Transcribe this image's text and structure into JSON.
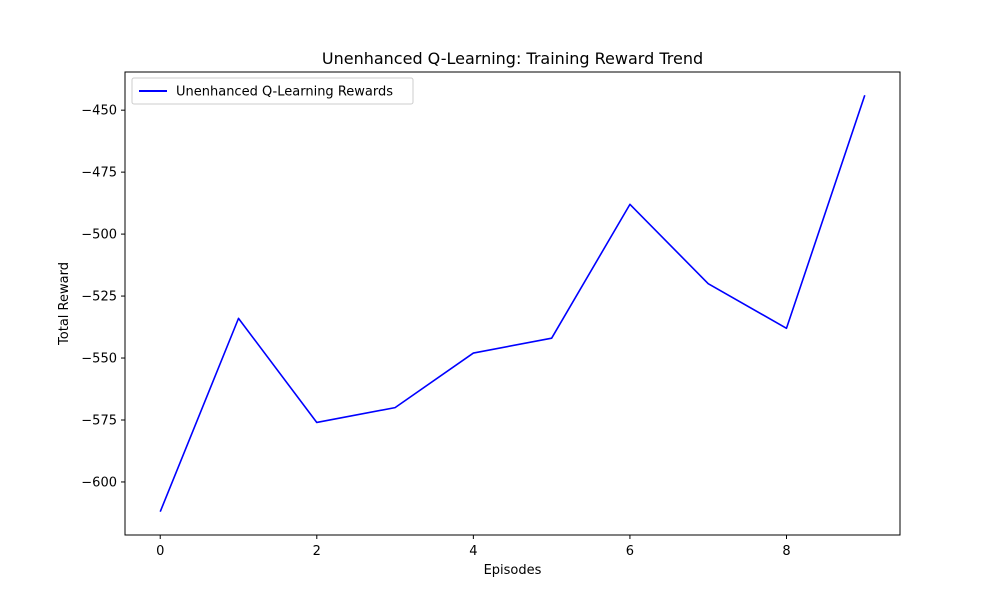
{
  "chart_data": {
    "type": "line",
    "title": "Unenhanced Q-Learning: Training Reward Trend",
    "xlabel": "Episodes",
    "ylabel": "Total Reward",
    "x": [
      0,
      1,
      2,
      3,
      4,
      5,
      6,
      7,
      8,
      9
    ],
    "series": [
      {
        "name": "Unenhanced Q-Learning Rewards",
        "color": "#0000ff",
        "values": [
          -612,
          -534,
          -576,
          -570,
          -548,
          -542,
          -488,
          -520,
          -538,
          -444
        ]
      }
    ],
    "xlim": [
      -0.45,
      9.45
    ],
    "ylim": [
      -621.4,
      -434.6
    ],
    "xticks": [
      0,
      2,
      4,
      6,
      8
    ],
    "xtick_labels": [
      "0",
      "2",
      "4",
      "6",
      "8"
    ],
    "yticks": [
      -600,
      -575,
      -550,
      -525,
      -500,
      -475,
      -450
    ],
    "ytick_labels": [
      "−600",
      "−575",
      "−550",
      "−525",
      "−500",
      "−475",
      "−450"
    ],
    "grid": false,
    "legend_position": "top-left"
  }
}
